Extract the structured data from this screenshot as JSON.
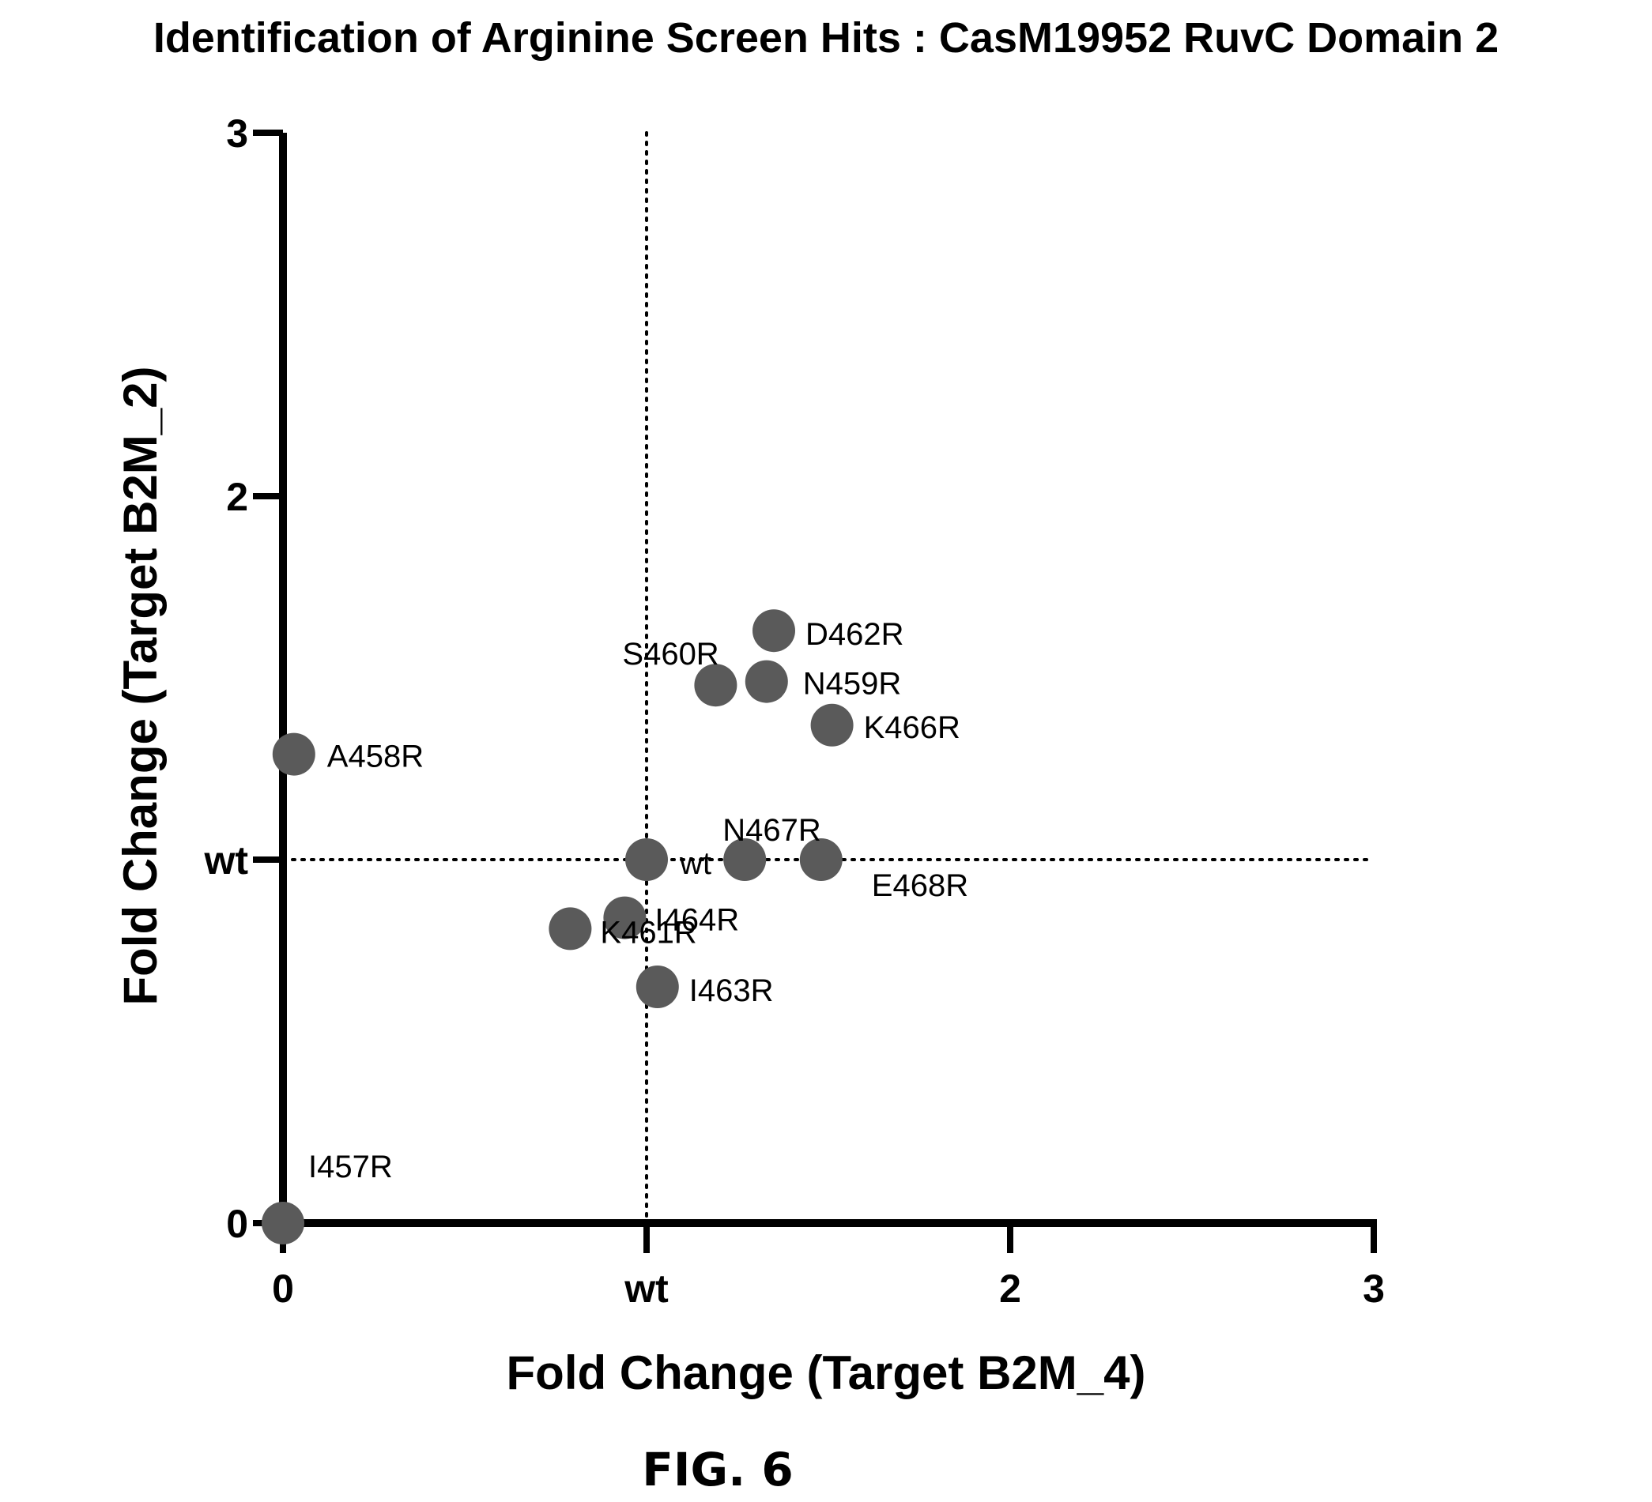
{
  "figure_caption": "FIG. 6",
  "chart_data": {
    "type": "scatter",
    "title": "Identification of Arginine Screen Hits : CasM19952 RuvC Domain 2",
    "xlabel": "Fold Change (Target B2M_4)",
    "ylabel": "Fold Change (Target B2M_2)",
    "xlim": [
      0,
      3
    ],
    "ylim": [
      0,
      3
    ],
    "x_ticks": [
      {
        "value": 0,
        "label": "0"
      },
      {
        "value": 1,
        "label": "wt"
      },
      {
        "value": 2,
        "label": "2"
      },
      {
        "value": 3,
        "label": "3"
      }
    ],
    "y_ticks": [
      {
        "value": 0,
        "label": "0"
      },
      {
        "value": 1,
        "label": "wt"
      },
      {
        "value": 2,
        "label": "2"
      },
      {
        "value": 3,
        "label": "3"
      }
    ],
    "reference_lines": {
      "x": 1,
      "y": 1,
      "style": "dotted"
    },
    "marker_color": "#5a5a5a",
    "points": [
      {
        "label": "I457R",
        "x": 0.0,
        "y": 0.0
      },
      {
        "label": "A458R",
        "x": 0.03,
        "y": 1.29
      },
      {
        "label": "N459R",
        "x": 1.33,
        "y": 1.49
      },
      {
        "label": "S460R",
        "x": 1.19,
        "y": 1.48
      },
      {
        "label": "K461R",
        "x": 0.79,
        "y": 0.81
      },
      {
        "label": "D462R",
        "x": 1.35,
        "y": 1.63
      },
      {
        "label": "I463R",
        "x": 1.03,
        "y": 0.65
      },
      {
        "label": "I464R",
        "x": 0.94,
        "y": 0.84
      },
      {
        "label": "K466R",
        "x": 1.51,
        "y": 1.37
      },
      {
        "label": "N467R",
        "x": 1.27,
        "y": 1.0
      },
      {
        "label": "E468R",
        "x": 1.48,
        "y": 1.0
      },
      {
        "label": "wt",
        "x": 1.0,
        "y": 1.0
      }
    ]
  }
}
